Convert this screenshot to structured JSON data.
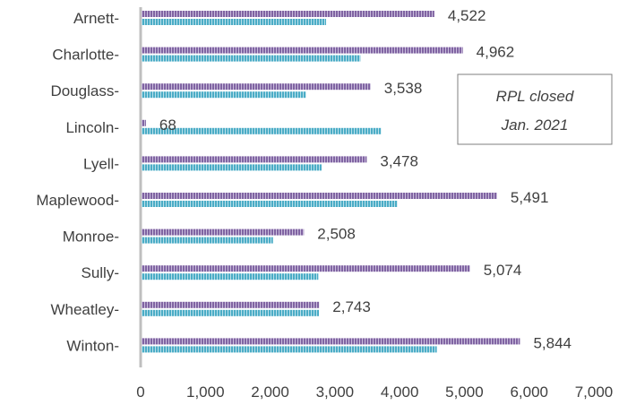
{
  "chart_data": {
    "type": "bar",
    "orientation": "horizontal",
    "categories": [
      "Arnett",
      "Charlotte",
      "Douglass",
      "Lincoln",
      "Lyell",
      "Maplewood",
      "Monroe",
      "Sully",
      "Wheatley",
      "Winton"
    ],
    "category_suffix": "-",
    "series": [
      {
        "values": [
          4522,
          4962,
          3538,
          68,
          3478,
          5491,
          2508,
          5074,
          2743,
          5844
        ],
        "color": "#8064a2",
        "data_labels": [
          "4,522",
          "4,962",
          "3,538",
          "68",
          "3,478",
          "5,491",
          "2,508",
          "5,074",
          "2,743",
          "5,844"
        ]
      },
      {
        "values": [
          2850,
          3380,
          2540,
          3700,
          2780,
          3950,
          2030,
          2730,
          2740,
          4560
        ],
        "color": "#4bacc6"
      }
    ],
    "xlim": [
      0,
      7000
    ],
    "x_ticks": [
      0,
      1000,
      2000,
      3000,
      4000,
      5000,
      6000,
      7000
    ],
    "x_tick_labels": [
      "0",
      "1,000",
      "2,000",
      "3,000",
      "4,000",
      "5,000",
      "6,000",
      "7,000"
    ],
    "grid": false,
    "legend": "none",
    "title": "",
    "xlabel": "",
    "ylabel": "",
    "annotation": {
      "lines": [
        "RPL  closed",
        "Jan. 2021"
      ]
    }
  }
}
